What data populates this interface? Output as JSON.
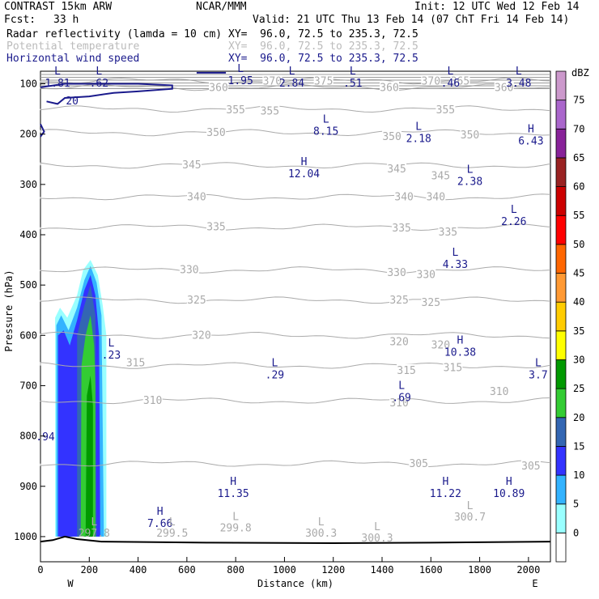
{
  "header": {
    "title": "CONTRAST 15km ARW",
    "center": "NCAR/MMM",
    "init": "Init: 12 UTC Wed 12 Feb 14",
    "fcst_label": "Fcst:",
    "fcst_value": "33 h",
    "valid": "Valid: 21 UTC Thu 13 Feb 14 (07 ChT Fri 14 Feb 14)",
    "fields": [
      {
        "name": "Radar reflectivity (lamda = 10 cm)",
        "xy": "XY=  96.0, 72.5 to 235.3, 72.5",
        "color": "#000000"
      },
      {
        "name": "Potential temperature",
        "xy": "XY=  96.0, 72.5 to 235.3, 72.5",
        "color": "#bbbbbb"
      },
      {
        "name": "Horizontal wind speed",
        "xy": "XY=  96.0, 72.5 to 235.3, 72.5",
        "color": "#1a1a8c"
      }
    ]
  },
  "chart_data": {
    "type": "cross-section",
    "xlabel": "Distance (km)",
    "ylabel": "Pressure (hPa)",
    "xlim": [
      0,
      2090
    ],
    "ylim": [
      1050,
      75
    ],
    "xticks": [
      0,
      200,
      400,
      600,
      800,
      1000,
      1200,
      1400,
      1600,
      1800,
      2000
    ],
    "yticks": [
      100,
      200,
      300,
      400,
      500,
      600,
      700,
      800,
      900,
      1000
    ],
    "x_end_labels": {
      "left": "W",
      "right": "E"
    },
    "colorbar": {
      "unit": "dBZ",
      "levels": [
        0,
        5,
        10,
        15,
        20,
        25,
        30,
        35,
        40,
        45,
        50,
        55,
        60,
        65,
        70,
        75
      ],
      "colors": [
        "#ffffff",
        "#99ffff",
        "#33b3ff",
        "#3333ff",
        "#3366b3",
        "#33cc33",
        "#009900",
        "#ffff00",
        "#ffcc00",
        "#ff9933",
        "#ff6600",
        "#ff0000",
        "#cc0000",
        "#992222",
        "#882299",
        "#aa66cc",
        "#cc99cc"
      ]
    },
    "reflectivity_band": {
      "x_range_km": [
        60,
        270
      ],
      "top_hPa": 450
    },
    "theta_contours": [
      {
        "value": "370",
        "p": 94
      },
      {
        "value": "360",
        "p": 107
      },
      {
        "value": "355",
        "p": 150
      },
      {
        "value": "350",
        "p": 197
      },
      {
        "value": "345",
        "p": 262
      },
      {
        "value": "340",
        "p": 325
      },
      {
        "value": "335",
        "p": 385
      },
      {
        "value": "330",
        "p": 470
      },
      {
        "value": "325",
        "p": 530
      },
      {
        "value": "320",
        "p": 600
      },
      {
        "value": "315",
        "p": 660
      },
      {
        "value": "310",
        "p": 730
      },
      {
        "value": "305",
        "p": 855
      }
    ],
    "theta_labels": [
      {
        "text": "360",
        "x": 730,
        "p": 108
      },
      {
        "text": "370",
        "x": 950,
        "p": 95
      },
      {
        "text": "375",
        "x": 1160,
        "p": 95
      },
      {
        "text": "360",
        "x": 1430,
        "p": 108
      },
      {
        "text": "370",
        "x": 1600,
        "p": 95
      },
      {
        "text": "365",
        "x": 1720,
        "p": 95
      },
      {
        "text": "360",
        "x": 1900,
        "p": 108
      },
      {
        "text": "355",
        "x": 800,
        "p": 152
      },
      {
        "text": "355",
        "x": 1660,
        "p": 152
      },
      {
        "text": "355",
        "x": 940,
        "p": 155
      },
      {
        "text": "350",
        "x": 720,
        "p": 197
      },
      {
        "text": "350",
        "x": 1440,
        "p": 205
      },
      {
        "text": "350",
        "x": 1760,
        "p": 202
      },
      {
        "text": "345",
        "x": 620,
        "p": 262
      },
      {
        "text": "345",
        "x": 1460,
        "p": 270
      },
      {
        "text": "345",
        "x": 1640,
        "p": 283
      },
      {
        "text": "340",
        "x": 640,
        "p": 325
      },
      {
        "text": "340",
        "x": 1490,
        "p": 325
      },
      {
        "text": "340",
        "x": 1620,
        "p": 325
      },
      {
        "text": "335",
        "x": 720,
        "p": 385
      },
      {
        "text": "335",
        "x": 1480,
        "p": 387
      },
      {
        "text": "335",
        "x": 1670,
        "p": 395
      },
      {
        "text": "330",
        "x": 610,
        "p": 470
      },
      {
        "text": "330",
        "x": 1460,
        "p": 476
      },
      {
        "text": "330",
        "x": 1580,
        "p": 480
      },
      {
        "text": "325",
        "x": 640,
        "p": 530
      },
      {
        "text": "325",
        "x": 1470,
        "p": 530
      },
      {
        "text": "325",
        "x": 1600,
        "p": 535
      },
      {
        "text": "320",
        "x": 660,
        "p": 600
      },
      {
        "text": "320",
        "x": 1470,
        "p": 613
      },
      {
        "text": "320",
        "x": 1640,
        "p": 620
      },
      {
        "text": "315",
        "x": 390,
        "p": 655
      },
      {
        "text": "315",
        "x": 1500,
        "p": 670
      },
      {
        "text": "315",
        "x": 1690,
        "p": 665
      },
      {
        "text": "310",
        "x": 460,
        "p": 730
      },
      {
        "text": "310",
        "x": 1470,
        "p": 735
      },
      {
        "text": "310",
        "x": 1880,
        "p": 712
      },
      {
        "text": "305",
        "x": 1550,
        "p": 855
      },
      {
        "text": "305",
        "x": 2010,
        "p": 860
      }
    ],
    "extrema": [
      {
        "kind": "L",
        "value": "1.81",
        "x": 70,
        "p": 85
      },
      {
        "kind": "L",
        "value": ".62",
        "x": 240,
        "p": 85
      },
      {
        "kind": "L",
        "value": "1.95",
        "x": 820,
        "p": 80
      },
      {
        "kind": "L",
        "value": "2.84",
        "x": 1030,
        "p": 85
      },
      {
        "kind": "L",
        "value": ".51",
        "x": 1280,
        "p": 85
      },
      {
        "kind": "L",
        "value": ".46",
        "x": 1680,
        "p": 85
      },
      {
        "kind": "L",
        "value": "3.48",
        "x": 1960,
        "p": 85
      },
      {
        "kind": "L",
        "value": "8.15",
        "x": 1170,
        "p": 180
      },
      {
        "kind": "L",
        "value": "2.18",
        "x": 1550,
        "p": 195
      },
      {
        "kind": "H",
        "value": "6.43",
        "x": 2010,
        "p": 200
      },
      {
        "kind": "H",
        "value": "12.04",
        "x": 1080,
        "p": 265
      },
      {
        "kind": "L",
        "value": "2.38",
        "x": 1760,
        "p": 280
      },
      {
        "kind": "L",
        "value": "2.26",
        "x": 1940,
        "p": 360
      },
      {
        "kind": "L",
        "value": "4.33",
        "x": 1700,
        "p": 445
      },
      {
        "kind": "L",
        "value": ".23",
        "x": 290,
        "p": 625
      },
      {
        "kind": "H",
        "value": "10.38",
        "x": 1720,
        "p": 620
      },
      {
        "kind": "L",
        "value": ".29",
        "x": 960,
        "p": 665
      },
      {
        "kind": "L",
        "value": ".69",
        "x": 1480,
        "p": 710
      },
      {
        "kind": "L",
        "value": "3.7",
        "x": 2040,
        "p": 665
      },
      {
        "kind": "",
        "value": ".94",
        "x": 20,
        "p": 788
      },
      {
        "kind": "H",
        "value": "11.35",
        "x": 790,
        "p": 900
      },
      {
        "kind": "H",
        "value": "11.22",
        "x": 1660,
        "p": 900
      },
      {
        "kind": "H",
        "value": "10.89",
        "x": 1920,
        "p": 900
      },
      {
        "kind": "H",
        "value": "7.66",
        "x": 490,
        "p": 960
      }
    ],
    "surface_labels": [
      {
        "kind": "L",
        "value": "297.8",
        "x": 220,
        "p": 1000
      },
      {
        "kind": "L",
        "value": "299.5",
        "x": 540,
        "p": 1000
      },
      {
        "kind": "L",
        "value": "299.8",
        "x": 800,
        "p": 990
      },
      {
        "kind": "L",
        "value": "300.3",
        "x": 1150,
        "p": 1000
      },
      {
        "kind": "L",
        "value": "300.3",
        "x": 1380,
        "p": 1010
      },
      {
        "kind": "L",
        "value": "300.7",
        "x": 1760,
        "p": 968
      }
    ],
    "wind_contour_label": {
      "text": "20",
      "x": 130,
      "p": 133
    }
  }
}
